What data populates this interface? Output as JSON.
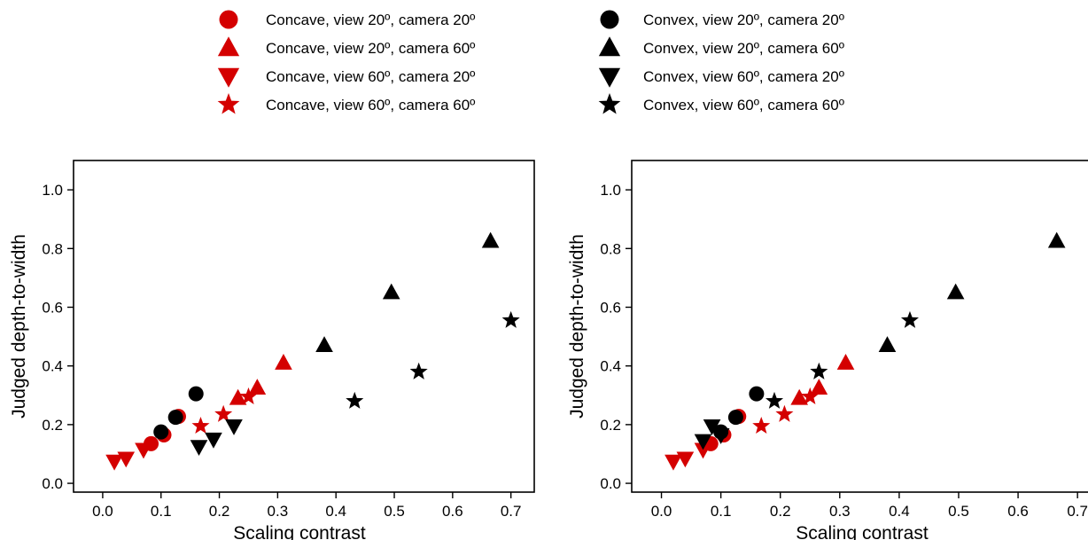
{
  "colors": {
    "concave": "#d40000",
    "convex": "#000000"
  },
  "legend": [
    {
      "label": "Concave, view 20º, camera 20º",
      "shape": "circle",
      "surface": "concave"
    },
    {
      "label": "Concave, view 20º, camera 60º",
      "shape": "triangle-up",
      "surface": "concave"
    },
    {
      "label": "Concave, view 60º, camera 20º",
      "shape": "triangle-down",
      "surface": "concave"
    },
    {
      "label": "Concave, view 60º, camera 60º",
      "shape": "star",
      "surface": "concave"
    },
    {
      "label": "Convex, view 20º, camera 20º",
      "shape": "circle",
      "surface": "convex"
    },
    {
      "label": "Convex, view 20º, camera 60º",
      "shape": "triangle-up",
      "surface": "convex"
    },
    {
      "label": "Convex, view 60º, camera 20º",
      "shape": "triangle-down",
      "surface": "convex"
    },
    {
      "label": "Convex, view 60º, camera 60º",
      "shape": "star",
      "surface": "convex"
    }
  ],
  "chart_data": [
    {
      "type": "scatter",
      "xlabel": "Scaling contrast",
      "ylabel": "Judged depth-to-width",
      "xlim": [
        -0.05,
        0.74
      ],
      "ylim": [
        -0.03,
        1.1
      ],
      "xticks": [
        "0.0",
        "0.1",
        "0.2",
        "0.3",
        "0.4",
        "0.5",
        "0.6",
        "0.7"
      ],
      "yticks": [
        "0.0",
        "0.2",
        "0.4",
        "0.6",
        "0.8",
        "1.0"
      ],
      "grid": false,
      "series": [
        {
          "name": "Convex, view 20º, camera 20º",
          "shape": "circle",
          "surface": "convex",
          "points": [
            [
              0.1,
              0.175
            ],
            [
              0.125,
              0.225
            ],
            [
              0.16,
              0.305
            ]
          ]
        },
        {
          "name": "Convex, view 20º, camera 60º",
          "shape": "triangle-up",
          "surface": "convex",
          "points": [
            [
              0.38,
              0.47
            ],
            [
              0.495,
              0.65
            ],
            [
              0.665,
              0.825
            ]
          ]
        },
        {
          "name": "Convex, view 60º, camera 20º",
          "shape": "triangle-down",
          "surface": "convex",
          "points": [
            [
              0.165,
              0.125
            ],
            [
              0.19,
              0.15
            ],
            [
              0.225,
              0.195
            ]
          ]
        },
        {
          "name": "Convex, view 60º, camera 60º",
          "shape": "star",
          "surface": "convex",
          "points": [
            [
              0.432,
              0.28
            ],
            [
              0.542,
              0.38
            ],
            [
              0.7,
              0.555
            ]
          ]
        },
        {
          "name": "Concave, view 20º, camera 20º",
          "shape": "circle",
          "surface": "concave",
          "points": [
            [
              0.083,
              0.135
            ],
            [
              0.105,
              0.165
            ],
            [
              0.13,
              0.228
            ]
          ]
        },
        {
          "name": "Concave, view 20º, camera 60º",
          "shape": "triangle-up",
          "surface": "concave",
          "points": [
            [
              0.232,
              0.29
            ],
            [
              0.265,
              0.325
            ],
            [
              0.31,
              0.41
            ]
          ]
        },
        {
          "name": "Concave, view 60º, camera 20º",
          "shape": "triangle-down",
          "surface": "concave",
          "points": [
            [
              0.02,
              0.075
            ],
            [
              0.04,
              0.085
            ],
            [
              0.07,
              0.115
            ]
          ]
        },
        {
          "name": "Concave, view 60º, camera 60º",
          "shape": "star",
          "surface": "concave",
          "points": [
            [
              0.168,
              0.195
            ],
            [
              0.207,
              0.235
            ],
            [
              0.25,
              0.295
            ]
          ]
        }
      ]
    },
    {
      "type": "scatter",
      "xlabel": "Scaling contrast",
      "ylabel": "Judged depth-to-width",
      "xlim": [
        -0.05,
        0.74
      ],
      "ylim": [
        -0.03,
        1.1
      ],
      "xticks": [
        "0.0",
        "0.1",
        "0.2",
        "0.3",
        "0.4",
        "0.5",
        "0.6",
        "0.7"
      ],
      "yticks": [
        "0.0",
        "0.2",
        "0.4",
        "0.6",
        "0.8",
        "1.0"
      ],
      "grid": false,
      "series": [
        {
          "name": "Convex, view 20º, camera 20º",
          "shape": "circle",
          "surface": "convex",
          "points": [
            [
              0.1,
              0.175
            ],
            [
              0.125,
              0.225
            ],
            [
              0.16,
              0.305
            ]
          ]
        },
        {
          "name": "Convex, view 20º, camera 60º",
          "shape": "triangle-up",
          "surface": "convex",
          "points": [
            [
              0.38,
              0.47
            ],
            [
              0.495,
              0.65
            ],
            [
              0.665,
              0.825
            ]
          ]
        },
        {
          "name": "Convex, view 60º, camera 20º",
          "shape": "triangle-down",
          "surface": "convex",
          "points": [
            [
              0.07,
              0.145
            ],
            [
              0.085,
              0.195
            ],
            [
              0.1,
              0.165
            ]
          ]
        },
        {
          "name": "Convex, view 60º, camera 60º",
          "shape": "star",
          "surface": "convex",
          "points": [
            [
              0.19,
              0.28
            ],
            [
              0.265,
              0.38
            ],
            [
              0.418,
              0.555
            ]
          ]
        },
        {
          "name": "Concave, view 20º, camera 20º",
          "shape": "circle",
          "surface": "concave",
          "points": [
            [
              0.083,
              0.135
            ],
            [
              0.105,
              0.165
            ],
            [
              0.13,
              0.228
            ]
          ]
        },
        {
          "name": "Concave, view 20º, camera 60º",
          "shape": "triangle-up",
          "surface": "concave",
          "points": [
            [
              0.232,
              0.29
            ],
            [
              0.265,
              0.325
            ],
            [
              0.31,
              0.41
            ]
          ]
        },
        {
          "name": "Concave, view 60º, camera 20º",
          "shape": "triangle-down",
          "surface": "concave",
          "points": [
            [
              0.02,
              0.075
            ],
            [
              0.04,
              0.085
            ],
            [
              0.07,
              0.115
            ]
          ]
        },
        {
          "name": "Concave, view 60º, camera 60º",
          "shape": "star",
          "surface": "concave",
          "points": [
            [
              0.168,
              0.195
            ],
            [
              0.207,
              0.235
            ],
            [
              0.25,
              0.295
            ]
          ]
        }
      ]
    }
  ]
}
